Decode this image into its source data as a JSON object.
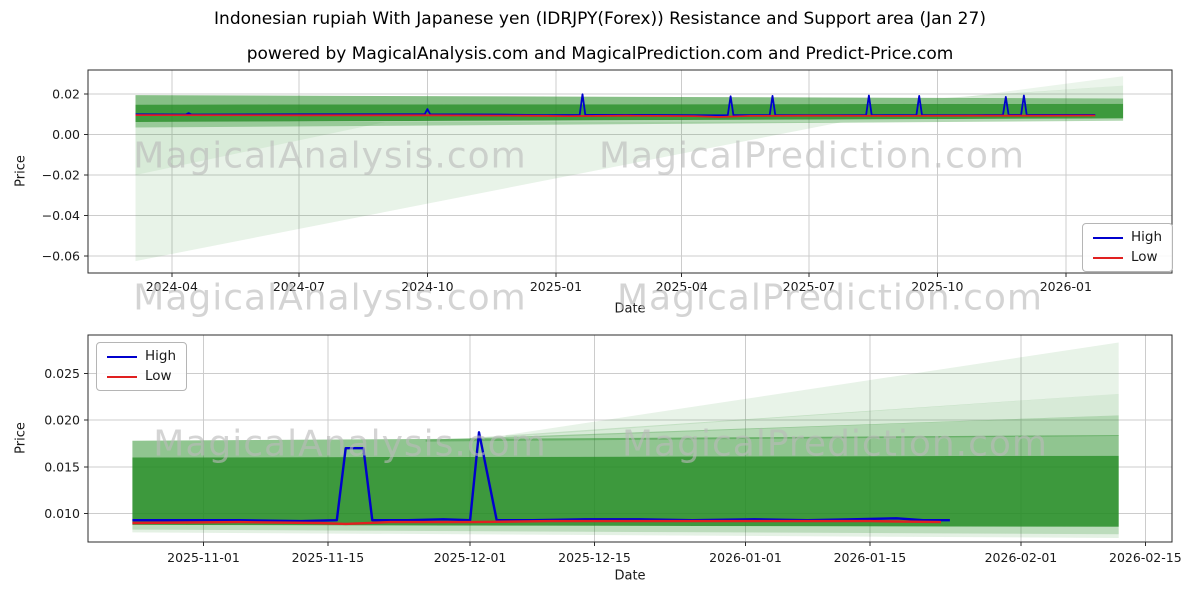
{
  "title": "Indonesian rupiah With Japanese yen (IDRJPY(Forex)) Resistance and Support area (Jan 27)",
  "subtitle": "powered by MagicalAnalysis.com and MagicalPrediction.com and Predict-Price.com",
  "watermarks": {
    "analysis": "MagicalAnalysis.com",
    "prediction": "MagicalPrediction.com"
  },
  "chart_data": [
    {
      "type": "line",
      "name": "long-range-daily-chart",
      "xlabel": "Date",
      "ylabel": "Price",
      "grid": true,
      "band_color": "#228B22",
      "xlim": [
        "2024-02-01",
        "2026-03-18"
      ],
      "ylim": [
        -0.0684,
        0.0319
      ],
      "xticks": [
        {
          "d": "2024-04-01",
          "label": "2024-04"
        },
        {
          "d": "2024-07-01",
          "label": "2024-07"
        },
        {
          "d": "2024-10-01",
          "label": "2024-10"
        },
        {
          "d": "2025-01-01",
          "label": "2025-01"
        },
        {
          "d": "2025-04-01",
          "label": "2025-04"
        },
        {
          "d": "2025-07-01",
          "label": "2025-07"
        },
        {
          "d": "2025-10-01",
          "label": "2025-10"
        },
        {
          "d": "2026-01-01",
          "label": "2026-01"
        }
      ],
      "yticks": [
        {
          "v": 0.02,
          "label": "0.02"
        },
        {
          "v": 0.0,
          "label": "0.00"
        },
        {
          "v": -0.02,
          "label": "−0.02"
        },
        {
          "v": -0.04,
          "label": "−0.04"
        },
        {
          "v": -0.06,
          "label": "−0.06"
        }
      ],
      "legend": {
        "position": "lower right",
        "entries": [
          {
            "label": "High",
            "color": "#0000cd"
          },
          {
            "label": "Low",
            "color": "#e02020"
          }
        ]
      },
      "bands": [
        {
          "name": "support-fan-palest",
          "alpha": 0.1,
          "points": [
            [
              "2024-03-06",
              0.0062
            ],
            [
              "2025-07-25",
              0.0062
            ],
            [
              "2024-03-06",
              -0.0625
            ]
          ]
        },
        {
          "name": "support-fan-medium",
          "alpha": 0.08,
          "points": [
            [
              "2024-03-06",
              0.0062
            ],
            [
              "2024-09-01",
              0.0062
            ],
            [
              "2024-03-06",
              -0.02
            ]
          ]
        },
        {
          "name": "band-top-strip",
          "alpha": 0.55,
          "points": [
            [
              "2024-03-06",
              0.0195
            ],
            [
              "2026-02-11",
              0.0178
            ],
            [
              "2026-02-11",
              0.0152
            ],
            [
              "2024-03-06",
              0.0148
            ]
          ]
        },
        {
          "name": "resistance-band-main",
          "alpha": 0.88,
          "points": [
            [
              "2024-03-06",
              0.0148
            ],
            [
              "2026-02-11",
              0.0152
            ],
            [
              "2026-02-11",
              0.008
            ],
            [
              "2024-03-06",
              0.0062
            ]
          ]
        },
        {
          "name": "band-under-strip",
          "alpha": 0.35,
          "points": [
            [
              "2024-03-06",
              0.0062
            ],
            [
              "2026-02-11",
              0.008
            ],
            [
              "2026-02-11",
              0.0068
            ],
            [
              "2024-03-06",
              0.0035
            ]
          ]
        },
        {
          "name": "forecast-wedge-upper",
          "alpha": 0.16,
          "points": [
            [
              "2025-10-05",
              0.018
            ],
            [
              "2026-02-11",
              0.0242
            ],
            [
              "2026-02-11",
              0.0178
            ]
          ]
        },
        {
          "name": "forecast-wedge-upper-pale",
          "alpha": 0.09,
          "points": [
            [
              "2025-10-20",
              0.0185
            ],
            [
              "2026-02-11",
              0.0288
            ],
            [
              "2026-02-11",
              0.0242
            ]
          ]
        }
      ],
      "series": [
        {
          "name": "High",
          "color": "#0000cd",
          "points": [
            [
              "2024-03-06",
              0.01
            ],
            [
              "2024-04-11",
              0.0099
            ],
            [
              "2024-04-13",
              0.0106
            ],
            [
              "2024-04-15",
              0.0099
            ],
            [
              "2024-07-01",
              0.01
            ],
            [
              "2024-09-29",
              0.01
            ],
            [
              "2024-10-01",
              0.0126
            ],
            [
              "2024-10-03",
              0.01
            ],
            [
              "2024-11-20",
              0.0099
            ],
            [
              "2024-12-25",
              0.0096
            ],
            [
              "2025-01-18",
              0.0097
            ],
            [
              "2025-01-20",
              0.0199
            ],
            [
              "2025-01-22",
              0.0097
            ],
            [
              "2025-03-01",
              0.0097
            ],
            [
              "2025-04-22",
              0.0095
            ],
            [
              "2025-05-04",
              0.0096
            ],
            [
              "2025-05-06",
              0.0189
            ],
            [
              "2025-05-08",
              0.0096
            ],
            [
              "2025-06-03",
              0.0096
            ],
            [
              "2025-06-05",
              0.0191
            ],
            [
              "2025-06-07",
              0.0096
            ],
            [
              "2025-07-15",
              0.0096
            ],
            [
              "2025-08-11",
              0.0096
            ],
            [
              "2025-08-13",
              0.0193
            ],
            [
              "2025-08-15",
              0.0096
            ],
            [
              "2025-09-16",
              0.0096
            ],
            [
              "2025-09-18",
              0.0191
            ],
            [
              "2025-09-20",
              0.0096
            ],
            [
              "2025-10-25",
              0.0096
            ],
            [
              "2025-11-17",
              0.0097
            ],
            [
              "2025-11-19",
              0.0186
            ],
            [
              "2025-11-21",
              0.0097
            ],
            [
              "2025-11-30",
              0.0097
            ],
            [
              "2025-12-02",
              0.0193
            ],
            [
              "2025-12-04",
              0.0097
            ],
            [
              "2026-01-22",
              0.0097
            ]
          ]
        },
        {
          "name": "Low",
          "color": "#e02020",
          "points": [
            [
              "2024-03-06",
              0.0096
            ],
            [
              "2024-07-01",
              0.0095
            ],
            [
              "2024-10-01",
              0.0095
            ],
            [
              "2024-12-10",
              0.0093
            ],
            [
              "2025-01-10",
              0.0091
            ],
            [
              "2025-02-20",
              0.0093
            ],
            [
              "2025-04-10",
              0.0091
            ],
            [
              "2025-04-28",
              0.0087
            ],
            [
              "2025-05-20",
              0.0092
            ],
            [
              "2025-07-01",
              0.0093
            ],
            [
              "2025-09-01",
              0.0092
            ],
            [
              "2025-11-01",
              0.0093
            ],
            [
              "2025-12-15",
              0.0093
            ],
            [
              "2026-01-22",
              0.0094
            ]
          ]
        }
      ]
    },
    {
      "type": "line",
      "name": "recent-zoom-chart",
      "xlabel": "Date",
      "ylabel": "Price",
      "grid": true,
      "band_color": "#228B22",
      "xlim": [
        "2025-10-19",
        "2026-02-18"
      ],
      "ylim": [
        0.00697,
        0.0291
      ],
      "xticks": [
        {
          "d": "2025-11-01",
          "label": "2025-11-01"
        },
        {
          "d": "2025-11-15",
          "label": "2025-11-15"
        },
        {
          "d": "2025-12-01",
          "label": "2025-12-01"
        },
        {
          "d": "2025-12-15",
          "label": "2025-12-15"
        },
        {
          "d": "2026-01-01",
          "label": "2026-01-01"
        },
        {
          "d": "2026-01-15",
          "label": "2026-01-15"
        },
        {
          "d": "2026-02-01",
          "label": "2026-02-01"
        },
        {
          "d": "2026-02-15",
          "label": "2026-02-15"
        }
      ],
      "yticks": [
        {
          "v": 0.025,
          "label": "0.025"
        },
        {
          "v": 0.02,
          "label": "0.020"
        },
        {
          "v": 0.015,
          "label": "0.015"
        },
        {
          "v": 0.01,
          "label": "0.010"
        }
      ],
      "legend": {
        "position": "upper left",
        "entries": [
          {
            "label": "High",
            "color": "#0000cd"
          },
          {
            "label": "Low",
            "color": "#e02020"
          }
        ]
      },
      "bands": [
        {
          "name": "band-top-strip",
          "alpha": 0.5,
          "points": [
            [
              "2025-10-24",
              0.0178
            ],
            [
              "2026-02-12",
              0.0184
            ],
            [
              "2026-02-12",
              0.0162
            ],
            [
              "2025-10-24",
              0.016
            ]
          ]
        },
        {
          "name": "resistance-band-main",
          "alpha": 0.88,
          "points": [
            [
              "2025-10-24",
              0.016
            ],
            [
              "2026-02-12",
              0.0162
            ],
            [
              "2026-02-12",
              0.0086
            ],
            [
              "2025-10-24",
              0.0088
            ]
          ]
        },
        {
          "name": "band-under-strip",
          "alpha": 0.3,
          "points": [
            [
              "2025-10-24",
              0.0088
            ],
            [
              "2026-02-12",
              0.0086
            ],
            [
              "2026-02-12",
              0.0078
            ],
            [
              "2025-10-24",
              0.0083
            ]
          ]
        },
        {
          "name": "band-under-palest",
          "alpha": 0.12,
          "points": [
            [
              "2025-10-24",
              0.0083
            ],
            [
              "2026-02-12",
              0.0078
            ],
            [
              "2026-02-12",
              0.0074
            ],
            [
              "2025-10-24",
              0.008
            ]
          ]
        },
        {
          "name": "forecast-wedge-medium",
          "alpha": 0.35,
          "points": [
            [
              "2025-11-26",
              0.0179
            ],
            [
              "2026-02-12",
              0.0205
            ],
            [
              "2026-02-12",
              0.0183
            ],
            [
              "2025-11-26",
              0.0177
            ]
          ]
        },
        {
          "name": "forecast-wedge-pale",
          "alpha": 0.18,
          "points": [
            [
              "2025-12-01",
              0.0181
            ],
            [
              "2026-02-12",
              0.0228
            ],
            [
              "2026-02-12",
              0.0205
            ],
            [
              "2025-12-01",
              0.0179
            ]
          ]
        },
        {
          "name": "forecast-wedge-palest",
          "alpha": 0.1,
          "points": [
            [
              "2025-12-05",
              0.0184
            ],
            [
              "2026-02-12",
              0.0283
            ],
            [
              "2026-02-12",
              0.0228
            ],
            [
              "2025-12-05",
              0.0182
            ]
          ]
        }
      ],
      "series": [
        {
          "name": "High",
          "color": "#0000cd",
          "points": [
            [
              "2025-10-24",
              0.0093
            ],
            [
              "2025-11-05",
              0.0093
            ],
            [
              "2025-11-12",
              0.0092
            ],
            [
              "2025-11-16",
              0.0093
            ],
            [
              "2025-11-17",
              0.017
            ],
            [
              "2025-11-19",
              0.017
            ],
            [
              "2025-11-20",
              0.0093
            ],
            [
              "2025-11-24",
              0.0093
            ],
            [
              "2025-11-28",
              0.0094
            ],
            [
              "2025-12-01",
              0.0093
            ],
            [
              "2025-12-02",
              0.0187
            ],
            [
              "2025-12-04",
              0.0093
            ],
            [
              "2025-12-08",
              0.0093
            ],
            [
              "2025-12-14",
              0.0094
            ],
            [
              "2025-12-20",
              0.0094
            ],
            [
              "2025-12-26",
              0.0093
            ],
            [
              "2026-01-02",
              0.0094
            ],
            [
              "2026-01-08",
              0.0093
            ],
            [
              "2026-01-13",
              0.0094
            ],
            [
              "2026-01-18",
              0.0095
            ],
            [
              "2026-01-21",
              0.0093
            ],
            [
              "2026-01-24",
              0.0093
            ]
          ]
        },
        {
          "name": "Low",
          "color": "#e02020",
          "points": [
            [
              "2025-10-24",
              0.009
            ],
            [
              "2025-11-05",
              0.0091
            ],
            [
              "2025-11-14",
              0.009
            ],
            [
              "2025-11-17",
              0.0089
            ],
            [
              "2025-11-22",
              0.0091
            ],
            [
              "2025-12-01",
              0.0091
            ],
            [
              "2025-12-10",
              0.0092
            ],
            [
              "2025-12-20",
              0.0092
            ],
            [
              "2026-01-05",
              0.0092
            ],
            [
              "2026-01-15",
              0.0092
            ],
            [
              "2026-01-23",
              0.0091
            ]
          ]
        }
      ]
    }
  ]
}
